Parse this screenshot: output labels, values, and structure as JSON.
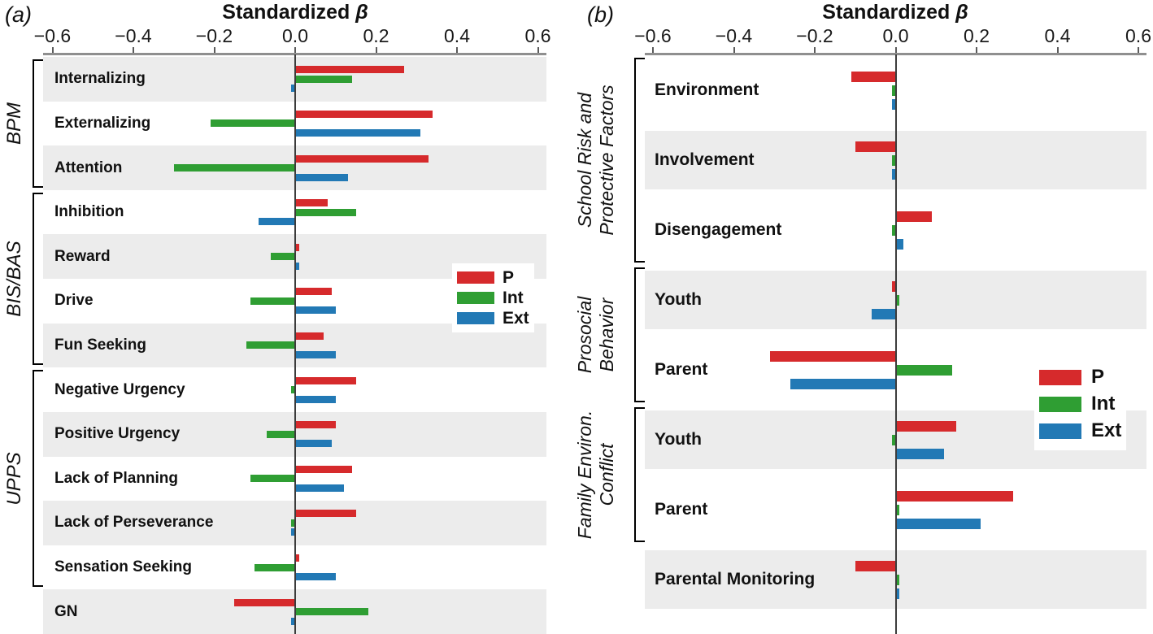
{
  "figure": {
    "description": "Two-panel horizontal bar chart of standardized beta coefficients for P, Int and Ext outcomes"
  },
  "colors": {
    "P": "#d62a2c",
    "Int": "#2f9e33",
    "Ext": "#2279b5",
    "stripe": "#ececec",
    "axis_line": "#8f8f8f",
    "zero_line": "#3c3c3c",
    "text": "#111111"
  },
  "chart_data": [
    {
      "type": "bar",
      "orientation": "horizontal",
      "panel_label": "(a)",
      "title": "Standardized β",
      "title_main": "Standardized ",
      "title_beta": "β",
      "xlim": [
        -0.62,
        0.62
      ],
      "xticks": [
        -0.6,
        -0.4,
        -0.2,
        0.0,
        0.2,
        0.4,
        0.6
      ],
      "xtick_labels": [
        "−0.6",
        "−0.4",
        "−0.2",
        "0.0",
        "0.2",
        "0.4",
        "0.6"
      ],
      "grid": false,
      "striped_rows": "even",
      "categories": [
        "Internalizing",
        "Externalizing",
        "Attention",
        "Inhibition",
        "Reward",
        "Drive",
        "Fun Seeking",
        "Negative Urgency",
        "Positive Urgency",
        "Lack of Planning",
        "Lack of Perseverance",
        "Sensation Seeking",
        "GN"
      ],
      "groups": [
        {
          "label_lines": [
            "BPM"
          ],
          "start": 0,
          "end": 2
        },
        {
          "label_lines": [
            "BIS/BAS"
          ],
          "start": 3,
          "end": 6
        },
        {
          "label_lines": [
            "UPPS"
          ],
          "start": 7,
          "end": 11
        }
      ],
      "series": [
        {
          "name": "P",
          "values": [
            0.27,
            0.34,
            0.33,
            0.08,
            0.01,
            0.09,
            0.07,
            0.15,
            0.1,
            0.14,
            0.15,
            0.01,
            -0.15
          ]
        },
        {
          "name": "Int",
          "values": [
            0.14,
            -0.21,
            -0.3,
            0.15,
            -0.06,
            -0.11,
            -0.12,
            -0.01,
            -0.07,
            -0.11,
            -0.01,
            -0.1,
            0.18
          ]
        },
        {
          "name": "Ext",
          "values": [
            -0.01,
            0.31,
            0.13,
            -0.09,
            0.01,
            0.1,
            0.1,
            0.1,
            0.09,
            0.12,
            -0.01,
            0.1,
            -0.01
          ]
        }
      ],
      "legend": {
        "labels": [
          "P",
          "Int",
          "Ext"
        ],
        "position": "middle-right"
      }
    },
    {
      "type": "bar",
      "orientation": "horizontal",
      "panel_label": "(b)",
      "title": "Standardized β",
      "title_main": "Standardized ",
      "title_beta": "β",
      "xlim": [
        -0.62,
        0.62
      ],
      "xticks": [
        -0.6,
        -0.4,
        -0.2,
        0.0,
        0.2,
        0.4,
        0.6
      ],
      "xtick_labels": [
        "−0.6",
        "−0.4",
        "−0.2",
        "0.0",
        "0.2",
        "0.4",
        "0.6"
      ],
      "grid": false,
      "striped_rows": "odd",
      "categories": [
        "Environment",
        "Involvement",
        "Disengagement",
        "Youth",
        "Parent",
        "Youth",
        "Parent",
        "Parental Monitoring"
      ],
      "groups": [
        {
          "label_lines": [
            "School Risk and",
            "Protective Factors"
          ],
          "start": 0,
          "end": 2
        },
        {
          "label_lines": [
            "Prosocial",
            "Behavior"
          ],
          "start": 3,
          "end": 4
        },
        {
          "label_lines": [
            "Family Environ.",
            "Conflict"
          ],
          "start": 5,
          "end": 6
        }
      ],
      "series": [
        {
          "name": "P",
          "values": [
            -0.11,
            -0.1,
            0.09,
            -0.01,
            -0.31,
            0.15,
            0.29,
            -0.1
          ]
        },
        {
          "name": "Int",
          "values": [
            -0.01,
            -0.01,
            -0.01,
            0.01,
            0.14,
            -0.01,
            0.01,
            0.01
          ]
        },
        {
          "name": "Ext",
          "values": [
            -0.01,
            -0.01,
            0.02,
            -0.06,
            -0.26,
            0.12,
            0.21,
            0.01
          ]
        }
      ],
      "legend": {
        "labels": [
          "P",
          "Int",
          "Ext"
        ],
        "position": "middle-right"
      }
    }
  ]
}
